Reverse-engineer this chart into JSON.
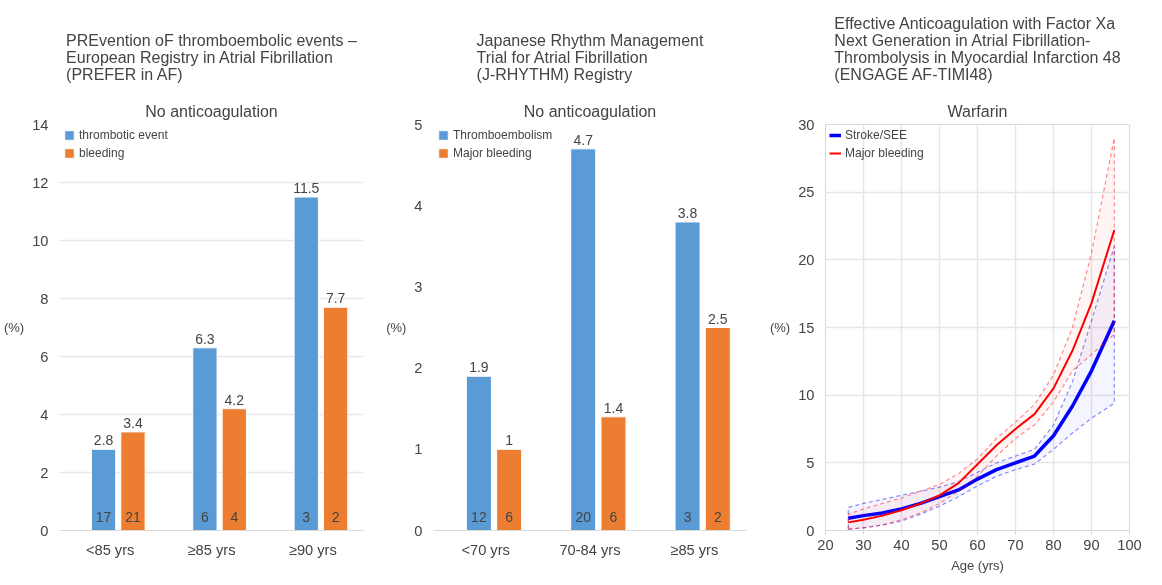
{
  "chart_data": [
    {
      "type": "bar",
      "title": "PREvention oF thromboembolic events –\nEuropean Registry in Atrial Fibrillation\n(PREFER in AF)",
      "subtitle": "No anticoagulation",
      "ylabel": "(%)",
      "categories": [
        "<85 yrs",
        "≥85 yrs",
        "≥90 yrs"
      ],
      "series": [
        {
          "name": "thrombotic event",
          "color": "#5b9bd5",
          "values": [
            2.8,
            6.3,
            11.5
          ]
        },
        {
          "name": "bleeding",
          "color": "#ed7d31",
          "values": [
            3.4,
            4.2,
            7.7
          ]
        }
      ],
      "ylim": [
        0,
        14
      ],
      "yticks": [
        0,
        2,
        4,
        6,
        8,
        10,
        12,
        14
      ],
      "grid": "y",
      "legend": "top left",
      "data_labels": true,
      "annotations": [
        "17",
        "21",
        "6",
        "4",
        "3",
        "2"
      ]
    },
    {
      "type": "bar",
      "title": "Japanese Rhythm Management\nTrial for Atrial Fibrillation\n(J-RHYTHM) Registry",
      "subtitle": "No anticoagulation",
      "ylabel": "(%)",
      "categories": [
        "<70 yrs",
        "70-84 yrs",
        "≥85 yrs"
      ],
      "series": [
        {
          "name": "Thromboembolism",
          "color": "#5b9bd5",
          "values": [
            1.9,
            4.7,
            3.8
          ]
        },
        {
          "name": "Major bleeding",
          "color": "#ed7d31",
          "values": [
            1,
            1.4,
            2.5
          ]
        }
      ],
      "ylim": [
        0,
        5
      ],
      "yticks": [
        0,
        1,
        2,
        3,
        4,
        5
      ],
      "grid": false,
      "legend": "top left",
      "data_labels": true,
      "annotations": [
        "12",
        "6",
        "20",
        "6",
        "3",
        "2"
      ]
    },
    {
      "type": "line",
      "title": "Effective Anticoagulation with Factor Xa\nNext Generation in Atrial Fibrillation-\nThrombolysis in Myocardial Infarction 48\n(ENGAGE AF-TIMI48)",
      "subtitle": "Warfarin",
      "ylabel": "(%)",
      "xlabel": "Age (yrs)",
      "x": [
        26,
        30,
        35,
        40,
        45,
        50,
        55,
        60,
        65,
        70,
        75,
        80,
        85,
        90,
        96
      ],
      "series": [
        {
          "name": "Stroke/SEE",
          "color": "#0000ff",
          "values": [
            0.9,
            1.1,
            1.3,
            1.6,
            2.0,
            2.5,
            3.0,
            3.8,
            4.5,
            5.0,
            5.5,
            7.0,
            9.2,
            11.8,
            15.5
          ],
          "lower": [
            0.1,
            0.2,
            0.4,
            0.7,
            1.2,
            1.8,
            2.5,
            3.3,
            4.0,
            4.5,
            4.9,
            6.0,
            7.2,
            8.3,
            9.4
          ],
          "upper": [
            1.7,
            2.0,
            2.3,
            2.6,
            2.9,
            3.2,
            3.6,
            4.3,
            5.0,
            5.5,
            6.0,
            7.8,
            11.0,
            15.5,
            21.0
          ]
        },
        {
          "name": "Major bleeding",
          "color": "#ff0000",
          "values": [
            0.6,
            0.8,
            1.1,
            1.5,
            2.0,
            2.6,
            3.5,
            4.9,
            6.3,
            7.5,
            8.6,
            10.5,
            13.3,
            16.8,
            22.2
          ],
          "lower": [
            0.1,
            0.2,
            0.4,
            0.8,
            1.3,
            2.0,
            2.9,
            4.0,
            5.5,
            6.8,
            7.8,
            9.5,
            11.8,
            13.0,
            14.5
          ],
          "upper": [
            1.2,
            1.6,
            2.0,
            2.4,
            2.9,
            3.4,
            4.2,
            5.3,
            6.8,
            8.0,
            9.3,
            11.5,
            15.0,
            20.5,
            29.0
          ]
        }
      ],
      "xlim": [
        20,
        100
      ],
      "xticks": [
        20,
        30,
        40,
        50,
        60,
        70,
        80,
        90,
        100
      ],
      "ylim": [
        0,
        30
      ],
      "yticks": [
        0,
        5,
        10,
        15,
        20,
        25,
        30
      ],
      "grid": true,
      "legend": "top left",
      "line_style": "solid",
      "marker": "none"
    }
  ]
}
